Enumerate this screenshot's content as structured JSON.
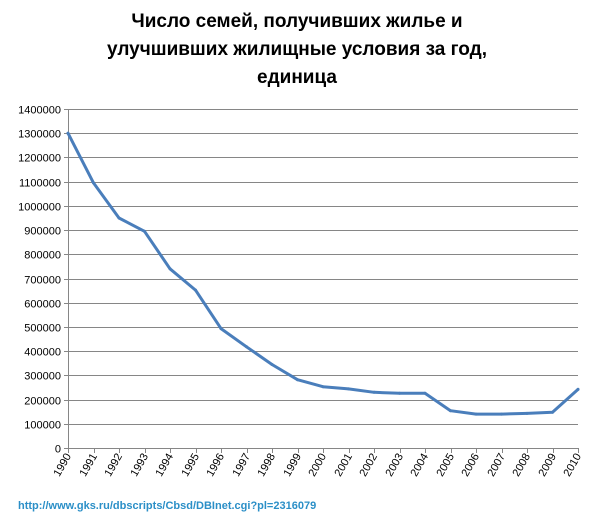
{
  "title_lines": [
    "Число семей, получивших жилье и",
    "улучшивших жилищные условия за год,",
    "единица"
  ],
  "source_url": "http://www.gks.ru/dbscripts/Cbsd/DBInet.cgi?pl=2316079",
  "colors": {
    "line": "#4a7ebb",
    "grid": "#868686",
    "axis": "#868686",
    "link": "#2b8fc7"
  },
  "chart_data": {
    "type": "line",
    "title": "Число семей, получивших жилье и улучшивших жилищные условия за год, единица",
    "xlabel": "",
    "ylabel": "",
    "ylim": [
      0,
      1400000
    ],
    "y_ticks": [
      0,
      100000,
      200000,
      300000,
      400000,
      500000,
      600000,
      700000,
      800000,
      900000,
      1000000,
      1100000,
      1200000,
      1300000,
      1400000
    ],
    "grid": true,
    "legend": "none",
    "categories": [
      "1990",
      "1991",
      "1992",
      "1993",
      "1994",
      "1995",
      "1996",
      "1997",
      "1998",
      "1999",
      "2000",
      "2001",
      "2002",
      "2003",
      "2004",
      "2005",
      "2006",
      "2007",
      "2008",
      "2009",
      "2010"
    ],
    "series": [
      {
        "values": [
          1300000,
          1095000,
          950000,
          895000,
          740000,
          652000,
          493000,
          418000,
          345000,
          282000,
          253000,
          244000,
          230000,
          226000,
          226000,
          154000,
          140000,
          140000,
          143000,
          148000,
          242000
        ]
      }
    ]
  }
}
